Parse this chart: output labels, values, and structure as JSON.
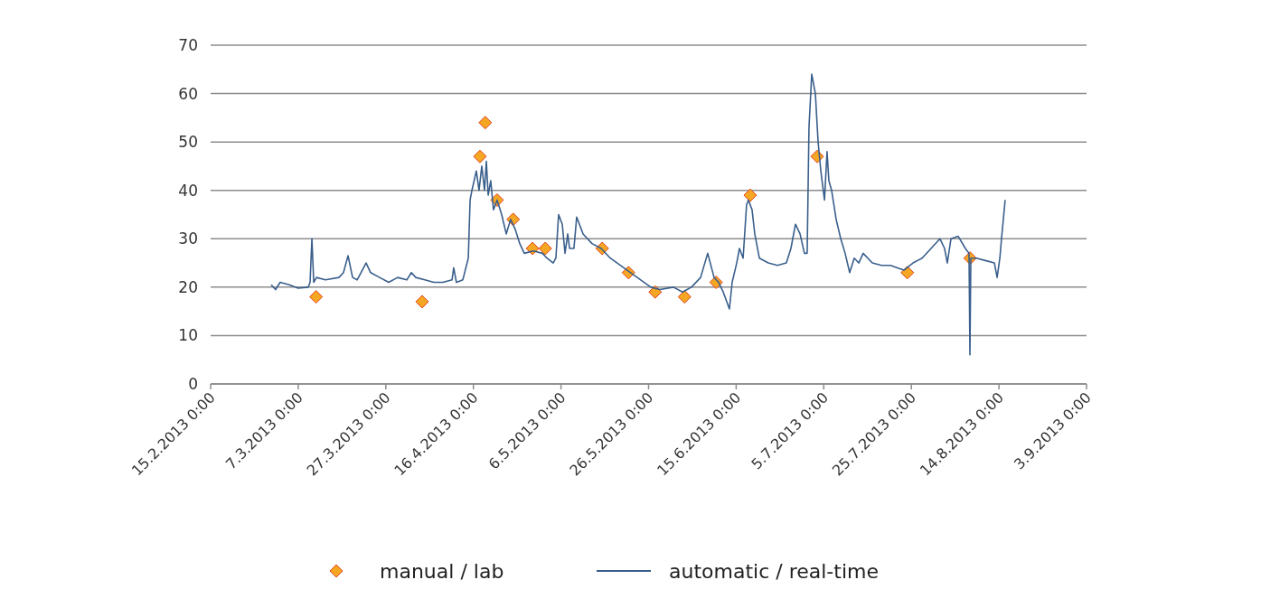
{
  "chart_data": {
    "type": "line",
    "ylim": [
      0,
      70
    ],
    "yticks": [
      0,
      10,
      20,
      30,
      40,
      50,
      60,
      70
    ],
    "xlim": [
      "2013-02-15T00:00",
      "2013-09-03T00:00"
    ],
    "xticks": [
      {
        "value": "2013-02-15T00:00",
        "label": "15.2.2013 0:00"
      },
      {
        "value": "2013-03-07T00:00",
        "label": "7.3.2013 0:00"
      },
      {
        "value": "2013-03-27T00:00",
        "label": "27.3.2013 0:00"
      },
      {
        "value": "2013-04-16T00:00",
        "label": "16.4.2013 0:00"
      },
      {
        "value": "2013-05-06T00:00",
        "label": "6.5.2013 0:00"
      },
      {
        "value": "2013-05-26T00:00",
        "label": "26.5.2013 0:00"
      },
      {
        "value": "2013-06-15T00:00",
        "label": "15.6.2013 0:00"
      },
      {
        "value": "2013-07-05T00:00",
        "label": "5.7.2013 0:00"
      },
      {
        "value": "2013-07-25T00:00",
        "label": "25.7.2013 0:00"
      },
      {
        "value": "2013-08-14T00:00",
        "label": "14.8.2013 0:00"
      },
      {
        "value": "2013-09-03T00:00",
        "label": "3.9.2013 0:00"
      }
    ],
    "grid": "y",
    "legend": "bottom",
    "series": [
      {
        "name": "manual / lab",
        "type": "scatter",
        "marker": "diamond",
        "color": "#f5a623",
        "x": [
          "2013-03-11T02:00",
          "2013-04-04T07:00",
          "2013-04-17T12:00",
          "2013-04-18T17:00",
          "2013-04-21T10:00",
          "2013-04-25T02:00",
          "2013-04-29T12:00",
          "2013-05-02T10:00",
          "2013-05-15T10:00",
          "2013-05-21T10:00",
          "2013-05-27T12:00",
          "2013-06-03T05:00",
          "2013-06-10T10:00",
          "2013-06-18T05:00",
          "2013-07-03T12:00",
          "2013-07-24T02:00",
          "2013-08-07T10:00"
        ],
        "values": [
          18,
          17,
          47,
          54,
          38,
          34,
          28,
          28,
          28,
          23,
          19,
          18,
          21,
          39,
          47,
          23,
          26
        ]
      },
      {
        "name": "automatic / real-time",
        "marker": "none",
        "color": "#3a5f8c",
        "x": [
          "2013-02-28T20:00",
          "2013-03-01T20:00",
          "2013-03-02T21:00",
          "2013-03-04T23:00",
          "2013-03-07T00:00",
          "2013-03-09T07:00",
          "2013-03-09T17:00",
          "2013-03-10T03:00",
          "2013-03-10T13:00",
          "2013-03-11T04:00",
          "2013-03-13T05:00",
          "2013-03-16T07:00",
          "2013-03-17T08:00",
          "2013-03-18T09:00",
          "2013-03-19T10:00",
          "2013-03-20T11:00",
          "2013-03-22T12:00",
          "2013-03-23T13:00",
          "2013-03-25T14:00",
          "2013-03-27T16:00",
          "2013-03-29T17:00",
          "2013-03-31T19:00",
          "2013-04-01T20:00",
          "2013-04-02T20:00",
          "2013-04-04T22:00",
          "2013-04-06T23:00",
          "2013-04-09T01:00",
          "2013-04-11T03:00",
          "2013-04-11T12:00",
          "2013-04-12T03:00",
          "2013-04-13T14:00",
          "2013-04-14T20:00",
          "2013-04-15T06:00",
          "2013-04-15T16:00",
          "2013-04-16T16:00",
          "2013-04-17T07:00",
          "2013-04-17T22:00",
          "2013-04-18T13:00",
          "2013-04-18T23:00",
          "2013-04-19T09:00",
          "2013-04-19T23:00",
          "2013-04-20T14:00",
          "2013-04-21T10:00",
          "2013-04-22T11:00",
          "2013-04-23T12:00",
          "2013-04-24T12:00",
          "2013-04-25T13:00",
          "2013-04-26T14:00",
          "2013-04-27T15:00",
          "2013-04-29T16:00",
          "2013-05-01T18:00",
          "2013-05-02T19:00",
          "2013-05-04T05:00",
          "2013-05-04T20:00",
          "2013-05-05T11:00",
          "2013-05-06T07:00",
          "2013-05-06T22:00",
          "2013-05-07T13:00",
          "2013-05-07T23:00",
          "2013-05-08T23:00",
          "2013-05-09T14:00",
          "2013-05-11T01:00",
          "2013-05-13T02:00",
          "2013-05-15T04:00",
          "2013-05-17T06:00",
          "2013-05-20T08:00",
          "2013-05-23T10:00",
          "2013-05-26T12:00",
          "2013-05-28T14:00",
          "2013-05-31T16:00",
          "2013-06-02T18:00",
          "2013-06-04T19:00",
          "2013-06-06T21:00",
          "2013-06-08T12:00",
          "2013-06-09T23:00",
          "2013-06-11T00:00",
          "2013-06-12T01:00",
          "2013-06-13T11:00",
          "2013-06-14T02:00",
          "2013-06-15T03:00",
          "2013-06-15T18:00",
          "2013-06-16T14:00",
          "2013-06-17T09:00",
          "2013-06-17T19:00",
          "2013-06-18T15:00",
          "2013-06-19T06:00",
          "2013-06-20T07:00",
          "2013-06-22T08:00",
          "2013-06-24T10:00",
          "2013-06-26T11:00",
          "2013-06-27T12:00",
          "2013-06-28T13:00",
          "2013-06-29T14:00",
          "2013-06-30T14:00",
          "2013-07-01T05:00",
          "2013-07-01T15:00",
          "2013-07-02T06:00",
          "2013-07-03T02:00",
          "2013-07-03T17:00",
          "2013-07-04T08:00",
          "2013-07-05T04:00",
          "2013-07-05T18:00",
          "2013-07-06T04:00",
          "2013-07-06T19:00",
          "2013-07-07T20:00",
          "2013-07-08T21:00",
          "2013-07-09T21:00",
          "2013-07-10T22:00",
          "2013-07-11T23:00",
          "2013-07-13T00:00",
          "2013-07-14T00:00",
          "2013-07-16T02:00",
          "2013-07-18T04:00",
          "2013-07-20T05:00",
          "2013-07-23T07:00",
          "2013-07-25T09:00",
          "2013-07-27T11:00",
          "2013-07-29T12:00",
          "2013-07-31T13:00",
          "2013-08-01T14:00",
          "2013-08-02T05:00",
          "2013-08-03T01:00",
          "2013-08-04T17:00",
          "2013-08-06T08:00",
          "2013-08-07T04:00",
          "2013-08-07T09:00",
          "2013-08-07T14:00",
          "2013-08-08T20:00",
          "2013-08-10T21:00",
          "2013-08-12T23:00",
          "2013-08-13T14:00",
          "2013-08-14T05:00",
          "2013-08-14T14:00",
          "2013-08-15T10:00"
        ],
        "values": [
          20.5,
          19.5,
          21,
          20.5,
          19.8,
          20,
          21,
          30,
          21,
          22,
          21.5,
          22,
          23,
          26.5,
          22,
          21.5,
          25,
          23,
          22,
          21,
          22,
          21.5,
          23,
          22,
          21.5,
          21,
          21,
          21.5,
          24,
          21,
          21.5,
          26,
          38,
          40,
          44,
          40,
          45,
          40,
          46,
          39,
          42,
          36,
          38,
          35,
          31,
          34,
          32,
          29,
          27,
          27.5,
          27,
          26,
          25,
          26,
          35,
          33,
          27,
          31,
          28,
          28,
          34.5,
          31,
          29,
          28,
          26,
          24,
          22,
          20,
          19.5,
          20,
          19,
          20,
          22,
          27,
          22,
          21,
          19,
          15.5,
          21,
          25,
          28,
          26,
          37,
          38,
          36,
          31,
          26,
          25,
          24.5,
          25,
          28,
          33,
          31,
          27,
          27,
          53,
          64,
          60,
          50,
          44,
          38,
          48,
          42,
          40,
          34,
          30,
          27,
          23,
          26,
          25,
          27,
          25,
          24.5,
          24.5,
          23.5,
          25,
          26,
          28,
          30,
          28,
          25,
          30,
          30.5,
          28,
          27,
          6,
          26,
          26,
          25.5,
          25,
          22,
          26,
          30,
          38
        ]
      }
    ]
  }
}
